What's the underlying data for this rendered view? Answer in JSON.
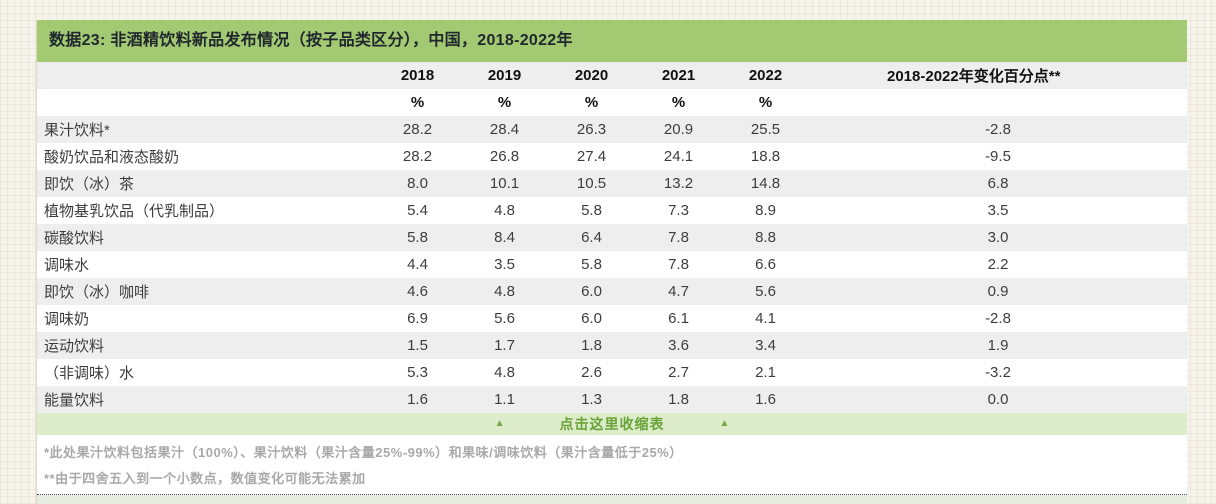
{
  "figure": {
    "title": "数据23: 非酒精饮料新品发布情况（按子品类区分），中国，2018-2022年",
    "years": [
      "2018",
      "2019",
      "2020",
      "2021",
      "2022"
    ],
    "change_header": "2018-2022年变化百分点**",
    "unit": "%",
    "rows": [
      {
        "label": "果汁饮料*",
        "values": [
          "28.2",
          "28.4",
          "26.3",
          "20.9",
          "25.5"
        ],
        "change": "-2.8"
      },
      {
        "label": "酸奶饮品和液态酸奶",
        "values": [
          "28.2",
          "26.8",
          "27.4",
          "24.1",
          "18.8"
        ],
        "change": "-9.5"
      },
      {
        "label": "即饮（冰）茶",
        "values": [
          "8.0",
          "10.1",
          "10.5",
          "13.2",
          "14.8"
        ],
        "change": "6.8"
      },
      {
        "label": "植物基乳饮品（代乳制品）",
        "values": [
          "5.4",
          "4.8",
          "5.8",
          "7.3",
          "8.9"
        ],
        "change": "3.5"
      },
      {
        "label": "碳酸饮料",
        "values": [
          "5.8",
          "8.4",
          "6.4",
          "7.8",
          "8.8"
        ],
        "change": "3.0"
      },
      {
        "label": "调味水",
        "values": [
          "4.4",
          "3.5",
          "5.8",
          "7.8",
          "6.6"
        ],
        "change": "2.2"
      },
      {
        "label": "即饮（冰）咖啡",
        "values": [
          "4.6",
          "4.8",
          "6.0",
          "4.7",
          "5.6"
        ],
        "change": "0.9"
      },
      {
        "label": "调味奶",
        "values": [
          "6.9",
          "5.6",
          "6.0",
          "6.1",
          "4.1"
        ],
        "change": "-2.8"
      },
      {
        "label": "运动饮料",
        "values": [
          "1.5",
          "1.7",
          "1.8",
          "3.6",
          "3.4"
        ],
        "change": "1.9"
      },
      {
        "label": "（非调味）水",
        "values": [
          "5.3",
          "4.8",
          "2.6",
          "2.7",
          "2.1"
        ],
        "change": "-3.2"
      },
      {
        "label": "能量饮料",
        "values": [
          "1.6",
          "1.1",
          "1.3",
          "1.8",
          "1.6"
        ],
        "change": "0.0"
      }
    ],
    "collapse": {
      "label": "点击这里收缩表",
      "arrow": "▲"
    },
    "footnotes": [
      "*此处果汁饮料包括果汁（100%）、果汁饮料（果汁含量25%-99%）和果味/调味饮料（果汁含量低于25%）",
      "**由于四舍五入到一个小数点，数值变化可能无法累加"
    ]
  },
  "colors": {
    "header_green": "#a3c973",
    "row_alt_gray": "#eeeeee",
    "collapse_bg": "#ddecca",
    "collapse_text": "#68a338",
    "footnote_gray": "#a9a9a9",
    "page_background": "#f5f3ea"
  },
  "chart_data": {
    "type": "table",
    "title": "数据23: 非酒精饮料新品发布情况（按子品类区分），中国，2018-2022年",
    "columns": [
      "2018",
      "2019",
      "2020",
      "2021",
      "2022",
      "2018-2022年变化百分点**"
    ],
    "unit": "%",
    "series": [
      {
        "name": "果汁饮料*",
        "values": [
          28.2,
          28.4,
          26.3,
          20.9,
          25.5
        ],
        "change": -2.8
      },
      {
        "name": "酸奶饮品和液态酸奶",
        "values": [
          28.2,
          26.8,
          27.4,
          24.1,
          18.8
        ],
        "change": -9.5
      },
      {
        "name": "即饮（冰）茶",
        "values": [
          8.0,
          10.1,
          10.5,
          13.2,
          14.8
        ],
        "change": 6.8
      },
      {
        "name": "植物基乳饮品（代乳制品）",
        "values": [
          5.4,
          4.8,
          5.8,
          7.3,
          8.9
        ],
        "change": 3.5
      },
      {
        "name": "碳酸饮料",
        "values": [
          5.8,
          8.4,
          6.4,
          7.8,
          8.8
        ],
        "change": 3.0
      },
      {
        "name": "调味水",
        "values": [
          4.4,
          3.5,
          5.8,
          7.8,
          6.6
        ],
        "change": 2.2
      },
      {
        "name": "即饮（冰）咖啡",
        "values": [
          4.6,
          4.8,
          6.0,
          4.7,
          5.6
        ],
        "change": 0.9
      },
      {
        "name": "调味奶",
        "values": [
          6.9,
          5.6,
          6.0,
          6.1,
          4.1
        ],
        "change": -2.8
      },
      {
        "name": "运动饮料",
        "values": [
          1.5,
          1.7,
          1.8,
          3.6,
          3.4
        ],
        "change": 1.9
      },
      {
        "name": "（非调味）水",
        "values": [
          5.3,
          4.8,
          2.6,
          2.7,
          2.1
        ],
        "change": -3.2
      },
      {
        "name": "能量饮料",
        "values": [
          1.6,
          1.1,
          1.3,
          1.8,
          1.6
        ],
        "change": 0.0
      }
    ],
    "footnotes": [
      "*此处果汁饮料包括果汁（100%）、果汁饮料（果汁含量25%-99%）和果味/调味饮料（果汁含量低于25%）",
      "**由于四舍五入到一个小数点，数值变化可能无法累加"
    ]
  }
}
